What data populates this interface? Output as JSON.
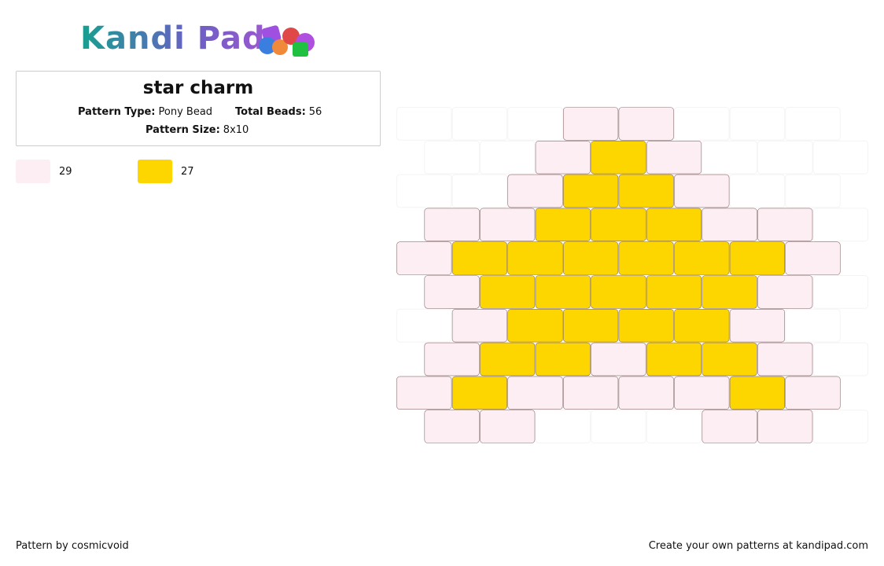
{
  "header": {
    "logo": "Kandi Pad"
  },
  "pattern": {
    "title": "star charm",
    "type_label": "Pattern Type:",
    "type_value": "Pony Bead",
    "beads_label": "Total Beads:",
    "beads_value": "56",
    "size_label": "Pattern Size:",
    "size_value": "8x10"
  },
  "palette": [
    {
      "color": "#fdeef3",
      "count": "29"
    },
    {
      "color": "#fdd600",
      "count": "27"
    }
  ],
  "grid": [
    [
      null,
      null,
      null,
      0,
      0,
      null,
      null,
      null
    ],
    [
      null,
      null,
      0,
      1,
      0,
      null,
      null,
      null
    ],
    [
      null,
      null,
      0,
      1,
      1,
      0,
      null,
      null
    ],
    [
      0,
      0,
      1,
      1,
      1,
      0,
      0,
      null
    ],
    [
      0,
      1,
      1,
      1,
      1,
      1,
      1,
      0
    ],
    [
      0,
      1,
      1,
      1,
      1,
      1,
      0,
      null
    ],
    [
      null,
      0,
      1,
      1,
      1,
      1,
      0,
      null
    ],
    [
      0,
      1,
      1,
      0,
      1,
      1,
      0,
      null
    ],
    [
      0,
      1,
      0,
      0,
      0,
      0,
      1,
      0
    ],
    [
      0,
      0,
      null,
      null,
      null,
      0,
      0,
      null
    ]
  ],
  "footer": {
    "left": "Pattern by cosmicvoid",
    "right": "Create your own patterns at kandipad.com"
  }
}
